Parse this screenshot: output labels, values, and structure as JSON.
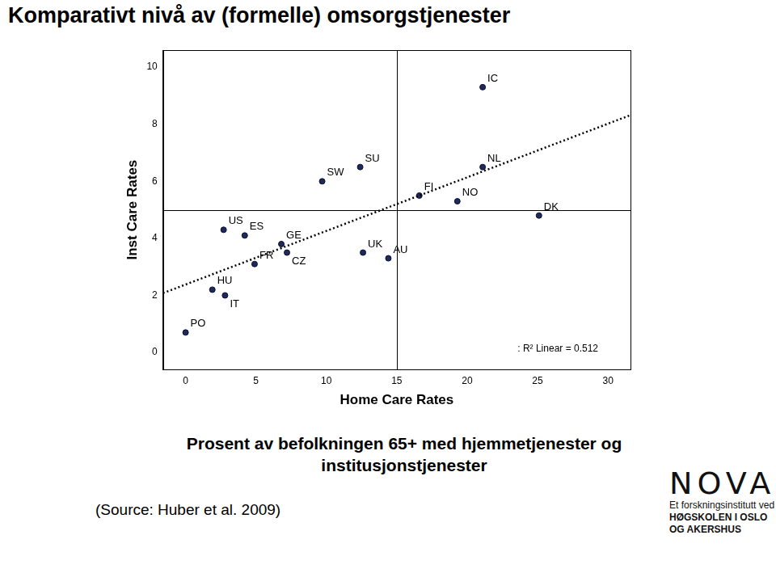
{
  "title": "Komparativt nivå av (formelle) omsorgstjenester",
  "chart_data": {
    "type": "scatter",
    "x_label": "Home Care Rates",
    "y_label": "Inst Care Rates",
    "labels": [
      "PO",
      "HU",
      "IT",
      "US",
      "ES",
      "FR",
      "GE",
      "CZ",
      "SW",
      "SU",
      "UK",
      "AU",
      "FI",
      "NO",
      "IC",
      "NL",
      "DK"
    ],
    "x": [
      0,
      1.9,
      2.8,
      2.7,
      4.2,
      4.9,
      6.8,
      7.2,
      9.7,
      12.4,
      12.6,
      14.4,
      16.6,
      19.3,
      21.1,
      21.1,
      25.1
    ],
    "values": [
      0.7,
      2.2,
      2.0,
      4.3,
      4.1,
      3.1,
      3.8,
      3.5,
      6.0,
      6.5,
      3.5,
      3.3,
      5.5,
      5.3,
      9.3,
      6.5,
      4.8
    ],
    "color": "#1f2a5c",
    "marker": "circle",
    "xlim": [
      -1.6,
      31.6
    ],
    "xticks": [
      0,
      5,
      10,
      15,
      20,
      25,
      30
    ],
    "ylim": [
      -0.6,
      10.6
    ],
    "yticks": [
      0,
      2,
      4,
      6,
      8,
      10
    ],
    "grid": false,
    "fit_line": {
      "x": [
        -1.6,
        31.6
      ],
      "values": [
        2.08,
        8.32
      ],
      "line_style": "dotted",
      "color": "#000000"
    },
    "reference_lines": {
      "x": 15,
      "y": 5
    },
    "annotation": ": R² Linear = 0.512"
  },
  "caption": "Prosent av befolkningen 65+ med hjemmetjenester og institusjonstjenester",
  "source": "(Source: Huber et al. 2009)",
  "logo": {
    "name": "NOVA",
    "lines": [
      "Et forskningsinstitutt ved",
      "HØGSKOLEN I OSLO",
      "OG AKERSHUS"
    ]
  }
}
